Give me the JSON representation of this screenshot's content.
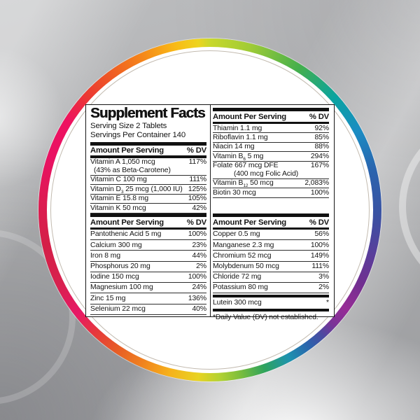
{
  "ring": {
    "stops": [
      [
        0,
        "#c8d82b"
      ],
      [
        14,
        "#9fcb36"
      ],
      [
        32,
        "#44af4c"
      ],
      [
        48,
        "#0aa3a0"
      ],
      [
        62,
        "#1b8cc3"
      ],
      [
        76,
        "#2a64ae"
      ],
      [
        92,
        "#3a51a2"
      ],
      [
        104,
        "#56409c"
      ],
      [
        116,
        "#712f90"
      ],
      [
        126,
        "#972c96"
      ],
      [
        133,
        "#7a3397"
      ],
      [
        138,
        "#4b4aa0"
      ],
      [
        144,
        "#2b64ad"
      ],
      [
        152,
        "#1e93af"
      ],
      [
        161,
        "#2ea35d"
      ],
      [
        170,
        "#7fbf3b"
      ],
      [
        177,
        "#b5d232"
      ],
      [
        184,
        "#e8d322"
      ],
      [
        194,
        "#f6b11b"
      ],
      [
        204,
        "#f0811f"
      ],
      [
        214,
        "#e75b26"
      ],
      [
        223,
        "#e6383c"
      ],
      [
        232,
        "#e71866"
      ],
      [
        244,
        "#d8214e"
      ],
      [
        258,
        "#d41f48"
      ],
      [
        272,
        "#dc1c51"
      ],
      [
        288,
        "#e91263"
      ],
      [
        302,
        "#ee1260"
      ],
      [
        313,
        "#eb3832"
      ],
      [
        324,
        "#ef5b24"
      ],
      [
        336,
        "#f58619"
      ],
      [
        348,
        "#f9ba16"
      ],
      [
        356,
        "#edd41e"
      ],
      [
        360,
        "#c8d82b"
      ]
    ],
    "inner_line_color": "#c3bbb0",
    "inner_fill": "#ffffff"
  },
  "label": {
    "title": "Supplement Facts",
    "serving_size": "Serving Size 2 Tablets",
    "servings_per_container": "Servings Per Container 140",
    "column_header": {
      "amount": "Amount Per Serving",
      "dv": "% DV"
    },
    "footnote": "*Daily Value (DV) not established.",
    "panels": {
      "left_top": {
        "rows": [
          {
            "pre": "Vitamin A 1,050 mcg",
            "dv": "117%",
            "line2": "(43% as Beta-Carotene)"
          },
          {
            "pre": "Vitamin C 100 mg",
            "dv": "111%"
          },
          {
            "pre": "Vitamin D",
            "sub": "3",
            "post": " 25 mcg (1,000 IU)",
            "dv": "125%"
          },
          {
            "pre": "Vitamin E 15.8 mg",
            "dv": "105%"
          },
          {
            "pre": "Vitamin K 50 mcg",
            "dv": "42%"
          }
        ]
      },
      "left_bottom": {
        "rows": [
          {
            "pre": "Pantothenic Acid 5 mg",
            "dv": "100%"
          },
          {
            "pre": "Calcium 300 mg",
            "dv": "23%"
          },
          {
            "pre": "Iron 8 mg",
            "dv": "44%"
          },
          {
            "pre": "Phosphorus 20 mg",
            "dv": "2%"
          },
          {
            "pre": "Iodine 150 mcg",
            "dv": "100%"
          },
          {
            "pre": "Magnesium 100 mg",
            "dv": "24%"
          },
          {
            "pre": "Zinc 15 mg",
            "dv": "136%"
          },
          {
            "pre": "Selenium 22 mcg",
            "dv": "40%"
          }
        ]
      },
      "right_top": {
        "rows": [
          {
            "pre": "Thiamin 1.1 mg",
            "dv": "92%"
          },
          {
            "pre": "Riboflavin 1.1 mg",
            "dv": "85%"
          },
          {
            "pre": "Niacin 14 mg",
            "dv": "88%"
          },
          {
            "pre": "Vitamin B",
            "sub": "6",
            "post": " 5 mg",
            "dv": "294%"
          },
          {
            "pre": "Folate 667 mcg DFE",
            "dv": "167%",
            "line2": "(400 mcg Folic Acid)",
            "line2_class": "indent-lg"
          },
          {
            "pre": "Vitamin B",
            "sub": "12",
            "post": " 50 mcg",
            "dv": "2,083%"
          },
          {
            "pre": "Biotin 30 mcg",
            "dv": "100%"
          }
        ]
      },
      "right_bottom": {
        "rows": [
          {
            "pre": "Copper 0.5 mg",
            "dv": "56%"
          },
          {
            "pre": "Manganese 2.3 mg",
            "dv": "100%"
          },
          {
            "pre": "Chromium 52 mcg",
            "dv": "149%"
          },
          {
            "pre": "Molybdenum 50 mcg",
            "dv": "111%"
          },
          {
            "pre": "Chloride 72 mg",
            "dv": "3%"
          },
          {
            "pre": "Potassium 80 mg",
            "dv": "2%"
          }
        ]
      },
      "right_bottom_lutein": {
        "rows": [
          {
            "pre": "Lutein 300 mcg",
            "dv": "*"
          }
        ]
      }
    }
  }
}
